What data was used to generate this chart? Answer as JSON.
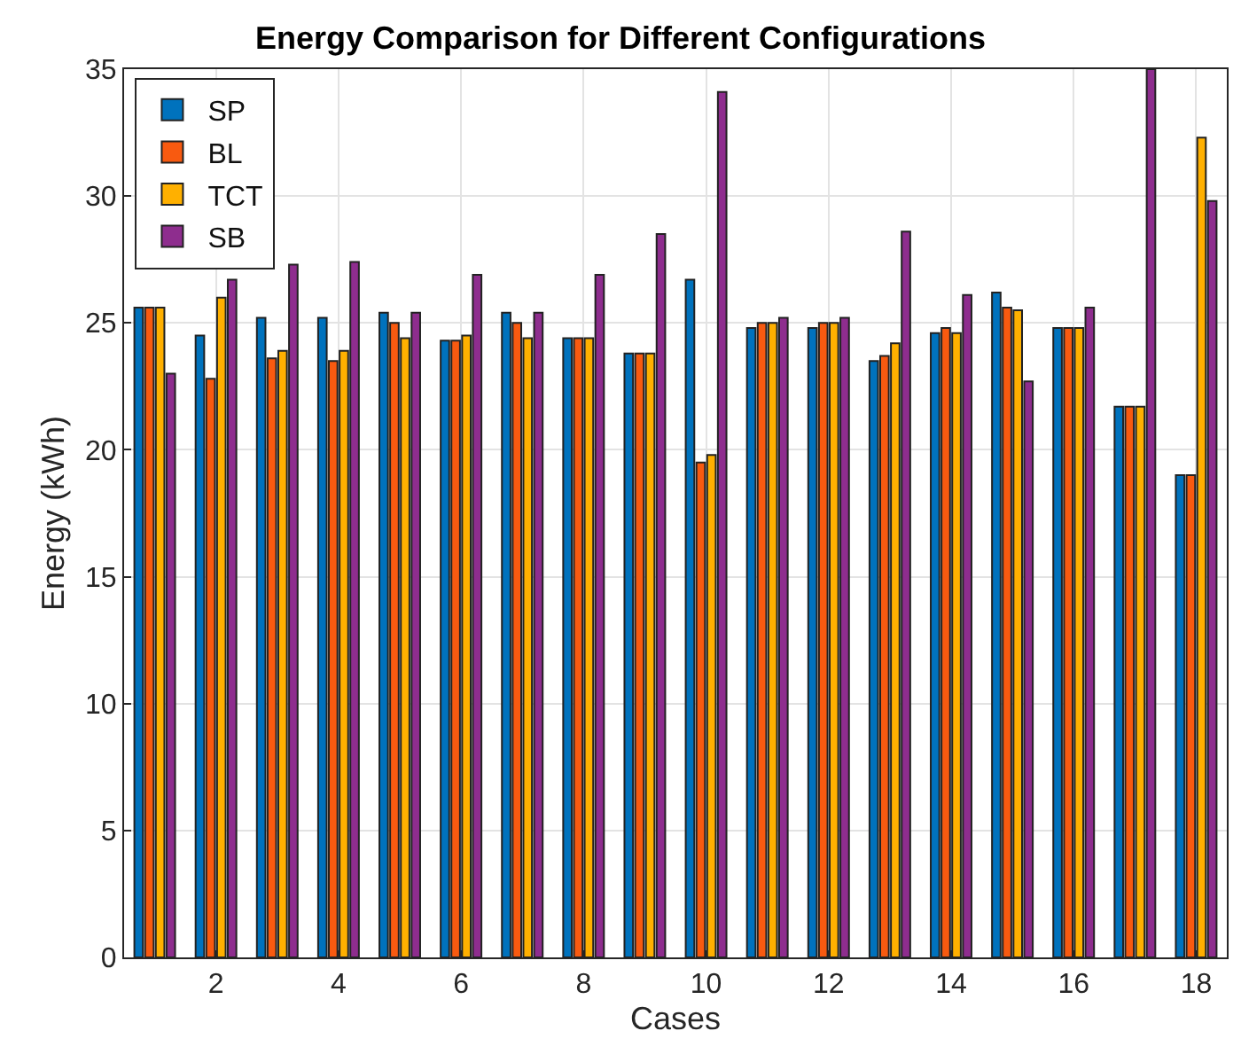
{
  "chart_data": {
    "type": "bar",
    "title": "Energy Comparison for Different Configurations",
    "xlabel": "Cases",
    "ylabel": "Energy (kWh)",
    "x": [
      1,
      2,
      3,
      4,
      5,
      6,
      7,
      8,
      9,
      10,
      11,
      12,
      13,
      14,
      15,
      16,
      17,
      18
    ],
    "series": [
      {
        "name": "SP",
        "color": "#0072bd",
        "values": [
          25.6,
          24.5,
          25.2,
          25.2,
          25.4,
          24.3,
          25.4,
          24.4,
          23.8,
          26.7,
          24.8,
          24.8,
          23.5,
          24.6,
          26.2,
          24.8,
          21.7,
          19.0
        ]
      },
      {
        "name": "BL",
        "color": "#f85a10",
        "values": [
          25.6,
          22.8,
          23.6,
          23.5,
          25.0,
          24.3,
          25.0,
          24.4,
          23.8,
          19.5,
          25.0,
          25.0,
          23.7,
          24.8,
          25.6,
          24.8,
          21.7,
          19.0
        ]
      },
      {
        "name": "TCT",
        "color": "#ffb000",
        "values": [
          25.6,
          26.0,
          23.9,
          23.9,
          24.4,
          24.5,
          24.4,
          24.4,
          23.8,
          19.8,
          25.0,
          25.0,
          24.2,
          24.6,
          25.5,
          24.8,
          21.7,
          32.3
        ]
      },
      {
        "name": "SB",
        "color": "#8e2d8e",
        "values": [
          23.0,
          26.7,
          27.3,
          27.4,
          25.4,
          26.9,
          25.4,
          26.9,
          28.5,
          34.1,
          25.2,
          25.2,
          28.6,
          26.1,
          22.7,
          25.6,
          35.0,
          29.8
        ]
      }
    ],
    "xlim": [
      0.5,
      18.5
    ],
    "xticks": [
      2,
      4,
      6,
      8,
      10,
      12,
      14,
      16,
      18
    ],
    "ylim": [
      0,
      35
    ],
    "yticks": [
      0,
      5,
      10,
      15,
      20,
      25,
      30,
      35
    ],
    "grid": true,
    "legend": "top left"
  }
}
